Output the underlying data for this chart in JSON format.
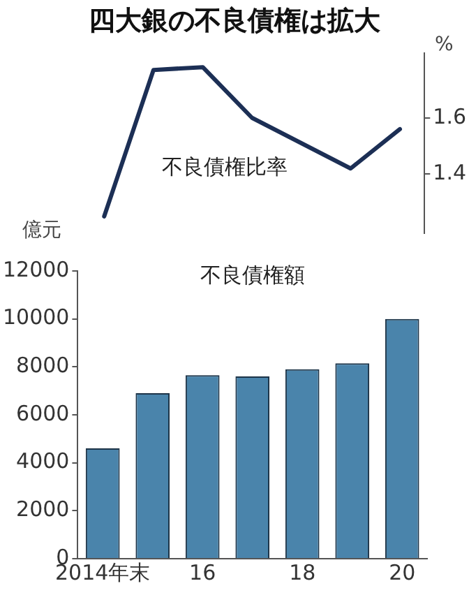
{
  "chart_data": [
    {
      "type": "line",
      "title": "四大銀の不良債権は拡大",
      "ylabel": "%",
      "annotations": [
        "不良債権比率"
      ],
      "categories": [
        null,
        null,
        null,
        null,
        null,
        null,
        null
      ],
      "series": [
        {
          "color": "#1c2f55",
          "values": [
            1.25,
            1.77,
            1.78,
            1.6,
            1.51,
            1.42,
            1.56
          ]
        }
      ],
      "ylim": [
        1.19,
        1.83
      ],
      "yticks": [
        1.4,
        1.6
      ],
      "tick_labels": "y",
      "marker": "none",
      "line_style": "solid"
    },
    {
      "type": "bar",
      "ylabel": "億元",
      "annotations": [
        "不良債権額"
      ],
      "categories": [
        "2014年末",
        null,
        "16",
        null,
        "18",
        null,
        "20"
      ],
      "series": [
        {
          "color": "#4a84ab",
          "values": [
            4600,
            6900,
            7650,
            7600,
            7900,
            8150,
            10000
          ]
        }
      ],
      "ylim": [
        0,
        12000
      ],
      "yticks": [
        0,
        2000,
        4000,
        6000,
        8000,
        10000,
        12000
      ]
    }
  ]
}
